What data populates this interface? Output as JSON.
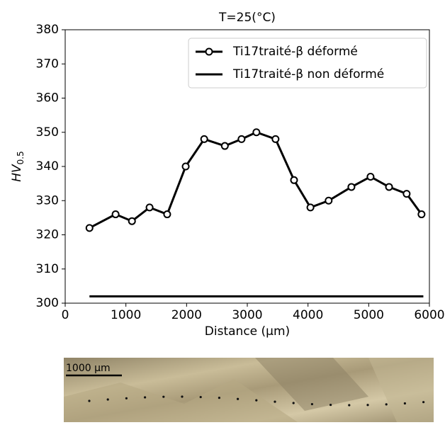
{
  "chart_data": {
    "type": "line",
    "title": "T=25(°C)",
    "xlabel": "Distance (μm)",
    "ylabel": [
      "HV",
      "0.5"
    ],
    "xlim": [
      0,
      6000
    ],
    "xticks": [
      0,
      1000,
      2000,
      3000,
      4000,
      5000,
      6000
    ],
    "ylim": [
      300,
      380
    ],
    "yticks": [
      300,
      310,
      320,
      330,
      340,
      350,
      360,
      370,
      380
    ],
    "legend": "upper right",
    "series": [
      {
        "name": "Ti17traité-β déformé",
        "color": "#000000",
        "marker": true,
        "x": [
          400,
          830,
          1100,
          1390,
          1680,
          1985,
          2290,
          2630,
          2905,
          3150,
          3465,
          3770,
          4040,
          4340,
          4715,
          5030,
          5335,
          5625,
          5870
        ],
        "values": [
          322,
          326,
          324,
          328,
          326,
          340,
          348,
          346,
          348,
          350,
          348,
          336,
          328,
          330,
          334,
          337,
          334,
          332,
          326
        ]
      },
      {
        "name": "Ti17traité-β non déformé",
        "color": "#000000",
        "marker": false,
        "x": [
          400,
          5900
        ],
        "values": [
          302,
          302
        ]
      }
    ]
  },
  "micrograph": {
    "scale_label": "1000 µm"
  }
}
